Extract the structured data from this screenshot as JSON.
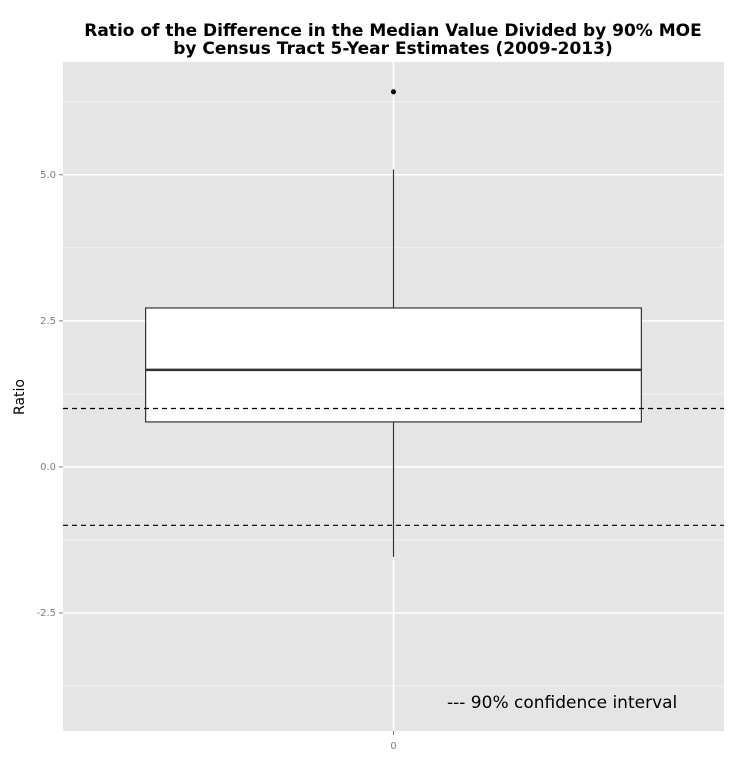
{
  "chart_data": {
    "type": "box",
    "title": [
      "Ratio of the Difference in the Median Value Divided by 90% MOE",
      "by Census Tract 5-Year Estimates (2009-2013)"
    ],
    "y_label": "Ratio",
    "categories": [
      "0"
    ],
    "boxes": [
      {
        "whislo": -1.54,
        "q1": 0.77,
        "med": 1.66,
        "q3": 2.72,
        "whishi": 5.09,
        "fliers": [
          6.42
        ]
      }
    ],
    "color": "#ffffff",
    "ylim": [
      -4.52,
      6.93
    ],
    "yticks": [
      {
        "value": -2.5,
        "label": "-2.5"
      },
      {
        "value": 0,
        "label": "0.0"
      },
      2.5,
      {
        "value": 5,
        "label": "5.0"
      }
    ],
    "minor_yticks": [
      -3.75,
      -1.25,
      1.25,
      3.75,
      6.25
    ],
    "hlines": [
      1,
      -1
    ],
    "annotation": "--- 90% confidence interval",
    "grid": true
  }
}
